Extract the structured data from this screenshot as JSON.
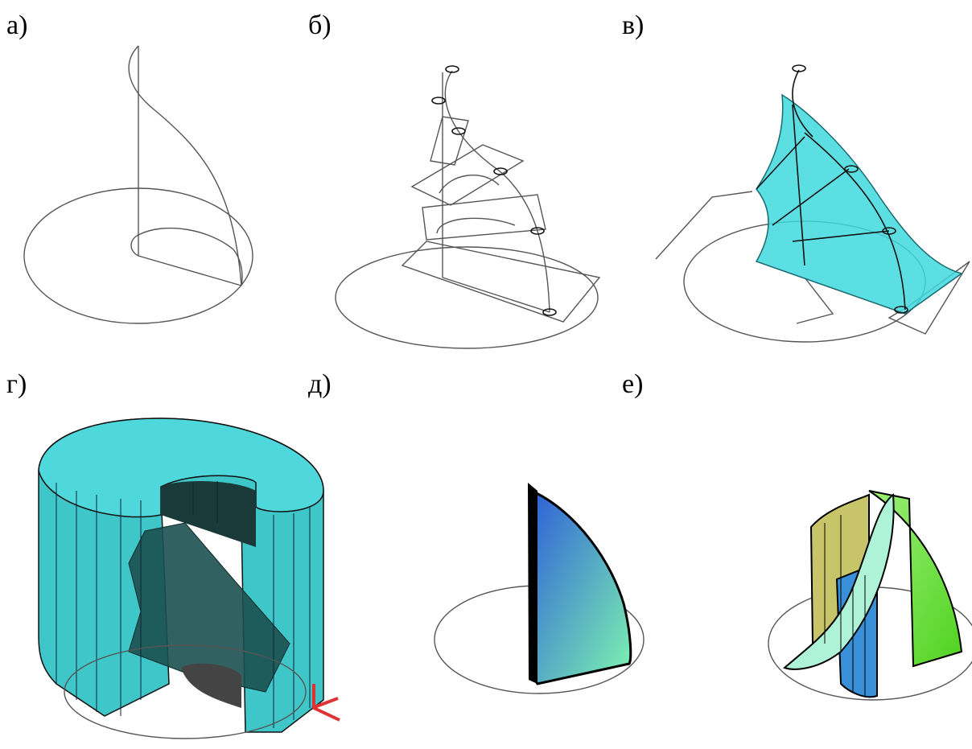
{
  "panels": [
    {
      "label": "а)"
    },
    {
      "label": "б)"
    },
    {
      "label": "в)"
    },
    {
      "label": "г)"
    },
    {
      "label": "д)"
    },
    {
      "label": "е)"
    }
  ]
}
